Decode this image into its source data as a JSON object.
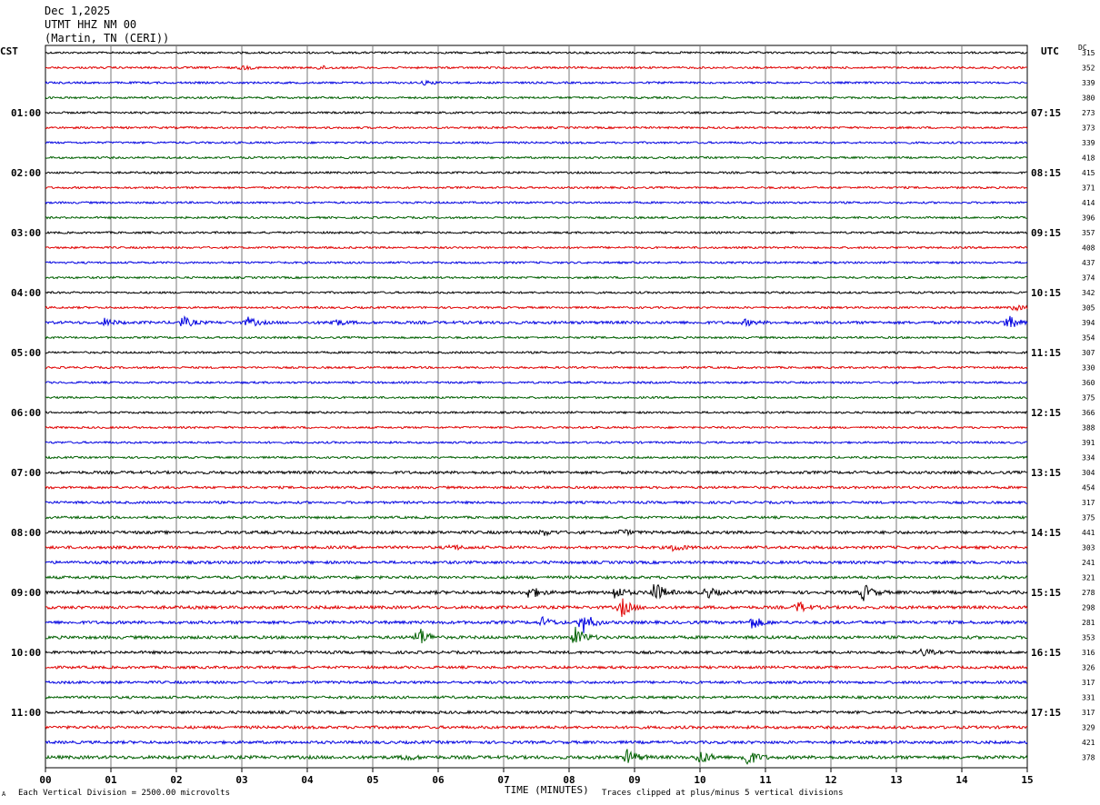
{
  "header": {
    "date": "Dec 1,2025",
    "station": "UTMT HHZ NM 00",
    "location": "(Martin, TN (CERI))"
  },
  "axis_labels": {
    "left_tz": "CST",
    "right_tz": "UTC",
    "dc_label": "DC",
    "xlabel": "TIME (MINUTES)"
  },
  "footer": {
    "scale_note": "Each Vertical Division = 2500.00 microvolts",
    "clip_note": "Traces clipped at plus/minus 5 vertical divisions",
    "corner_mark": "A"
  },
  "chart_data": {
    "type": "line",
    "title": "UTMT HHZ NM 00",
    "xlabel": "TIME (MINUTES)",
    "ylabel": "",
    "xlim": [
      0,
      15
    ],
    "x_ticks": [
      "00",
      "01",
      "02",
      "03",
      "04",
      "05",
      "06",
      "07",
      "08",
      "09",
      "10",
      "11",
      "12",
      "13",
      "14",
      "15"
    ],
    "trace_colors": [
      "#000000",
      "#e00000",
      "#0000e0",
      "#006000"
    ],
    "left_hour_labels": [
      "01:00",
      "02:00",
      "03:00",
      "04:00",
      "05:00",
      "06:00",
      "07:00",
      "08:00",
      "09:00",
      "10:00",
      "11:00"
    ],
    "right_hour_labels": [
      "07:15",
      "08:15",
      "09:15",
      "10:15",
      "11:15",
      "12:15",
      "13:15",
      "14:15",
      "15:15",
      "16:15",
      "17:15"
    ],
    "dc_offsets": [
      315,
      352,
      339,
      380,
      273,
      373,
      339,
      418,
      415,
      371,
      414,
      396,
      357,
      408,
      437,
      374,
      342,
      305,
      394,
      354,
      307,
      330,
      360,
      375,
      366,
      388,
      391,
      334,
      304,
      454,
      317,
      375,
      441,
      303,
      241,
      321,
      278,
      298,
      281,
      353,
      316,
      326,
      317,
      331,
      317,
      329,
      421,
      378
    ],
    "noise_levels": [
      1,
      1,
      1,
      1,
      1,
      1,
      1,
      1,
      1,
      1,
      1,
      1,
      1,
      1,
      1,
      1,
      1,
      1,
      1.4,
      1,
      1,
      1,
      1,
      1,
      1,
      1,
      1,
      1,
      1.4,
      1.2,
      1.2,
      1.2,
      1.5,
      1.4,
      1.4,
      1.4,
      1.6,
      1.5,
      1.5,
      1.5,
      1.4,
      1.3,
      1.3,
      1.3,
      1.4,
      1.4,
      1.4,
      1.6
    ],
    "events": [
      {
        "trace": 1,
        "minute": 3.0,
        "amplitude": 2
      },
      {
        "trace": 1,
        "minute": 4.2,
        "amplitude": 2
      },
      {
        "trace": 2,
        "minute": 5.8,
        "amplitude": 2
      },
      {
        "trace": 18,
        "minute": 0.9,
        "amplitude": 4
      },
      {
        "trace": 18,
        "minute": 2.1,
        "amplitude": 6
      },
      {
        "trace": 18,
        "minute": 3.1,
        "amplitude": 5
      },
      {
        "trace": 18,
        "minute": 4.4,
        "amplitude": 4
      },
      {
        "trace": 18,
        "minute": 10.7,
        "amplitude": 3
      },
      {
        "trace": 18,
        "minute": 14.7,
        "amplitude": 8
      },
      {
        "trace": 17,
        "minute": 14.8,
        "amplitude": 3
      },
      {
        "trace": 32,
        "minute": 7.6,
        "amplitude": 3
      },
      {
        "trace": 32,
        "minute": 8.8,
        "amplitude": 3
      },
      {
        "trace": 33,
        "minute": 6.2,
        "amplitude": 3
      },
      {
        "trace": 33,
        "minute": 9.6,
        "amplitude": 4
      },
      {
        "trace": 36,
        "minute": 7.4,
        "amplitude": 7
      },
      {
        "trace": 36,
        "minute": 8.7,
        "amplitude": 7
      },
      {
        "trace": 36,
        "minute": 9.3,
        "amplitude": 12
      },
      {
        "trace": 36,
        "minute": 10.1,
        "amplitude": 6
      },
      {
        "trace": 36,
        "minute": 12.5,
        "amplitude": 9
      },
      {
        "trace": 37,
        "minute": 8.8,
        "amplitude": 10
      },
      {
        "trace": 37,
        "minute": 11.5,
        "amplitude": 6
      },
      {
        "trace": 38,
        "minute": 7.6,
        "amplitude": 5
      },
      {
        "trace": 38,
        "minute": 8.2,
        "amplitude": 13
      },
      {
        "trace": 38,
        "minute": 10.8,
        "amplitude": 7
      },
      {
        "trace": 39,
        "minute": 5.7,
        "amplitude": 12
      },
      {
        "trace": 39,
        "minute": 8.1,
        "amplitude": 11
      },
      {
        "trace": 40,
        "minute": 13.4,
        "amplitude": 4
      },
      {
        "trace": 47,
        "minute": 8.9,
        "amplitude": 9
      },
      {
        "trace": 47,
        "minute": 10.0,
        "amplitude": 8
      },
      {
        "trace": 47,
        "minute": 10.7,
        "amplitude": 11
      },
      {
        "trace": 47,
        "minute": 5.5,
        "amplitude": 3
      }
    ]
  }
}
